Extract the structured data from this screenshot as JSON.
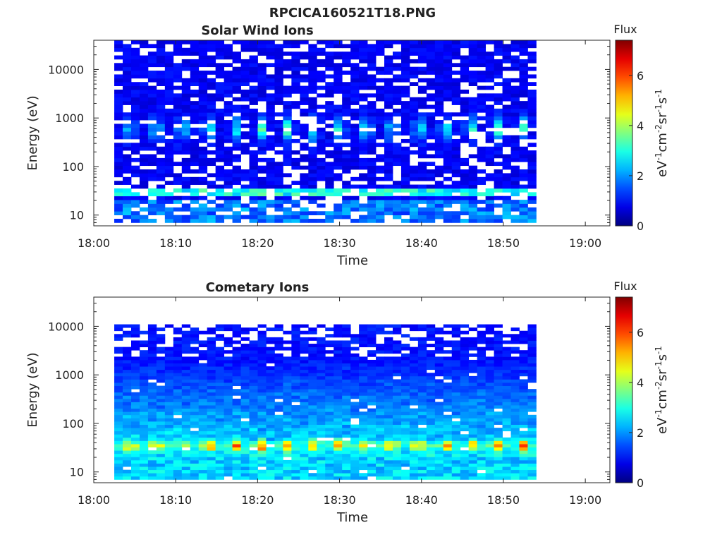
{
  "figure": {
    "title": "RPCICA160521T18.PNG"
  },
  "chart_data": [
    {
      "type": "heatmap",
      "title": "Solar Wind Ions",
      "xlabel": "Time",
      "ylabel": "Energy (eV)",
      "x_ticks": [
        "18:00",
        "18:10",
        "18:20",
        "18:30",
        "18:40",
        "18:50",
        "19:00"
      ],
      "x_range": [
        "18:00",
        "19:03"
      ],
      "data_time_range": [
        "18:02.5",
        "18:54"
      ],
      "y_ticks": [
        "10",
        "100",
        "1000",
        "10000"
      ],
      "y_scale": "log",
      "y_range": [
        6,
        40000
      ],
      "colorbar": {
        "title": "Flux",
        "label": "eV-1cm-2sr-1s-1",
        "ticks": [
          "0",
          "2",
          "4",
          "6"
        ],
        "range": [
          0,
          7.4
        ],
        "colormap": "jet"
      },
      "features": {
        "periodic_peak_energy_eV": 600,
        "peak_flux": 3.0,
        "secondary_band_energy_eV": 30,
        "secondary_band_flux": 3.2,
        "low_energy_flux": 2.0,
        "background_flux": 0.6,
        "pulse_period_min": 3.2
      }
    },
    {
      "type": "heatmap",
      "title": "Cometary Ions",
      "xlabel": "Time",
      "ylabel": "Energy (eV)",
      "x_ticks": [
        "18:00",
        "18:10",
        "18:20",
        "18:30",
        "18:40",
        "18:50",
        "19:00"
      ],
      "x_range": [
        "18:00",
        "19:03"
      ],
      "data_time_range": [
        "18:02.5",
        "18:54"
      ],
      "y_ticks": [
        "10",
        "100",
        "1000",
        "10000"
      ],
      "y_scale": "log",
      "y_range": [
        6,
        40000
      ],
      "colorbar": {
        "title": "Flux",
        "label": "eV-1cm-2sr-1s-1",
        "ticks": [
          "0",
          "2",
          "4",
          "6"
        ],
        "range": [
          0,
          7.4
        ],
        "colormap": "jet"
      },
      "features": {
        "periodic_peak_energy_eV": 35,
        "peak_flux": 5.6,
        "low_energy_flux": 2.6,
        "background_flux": 0.8,
        "data_upper_energy_eV": 11000,
        "pulse_period_min": 3.2
      }
    }
  ]
}
